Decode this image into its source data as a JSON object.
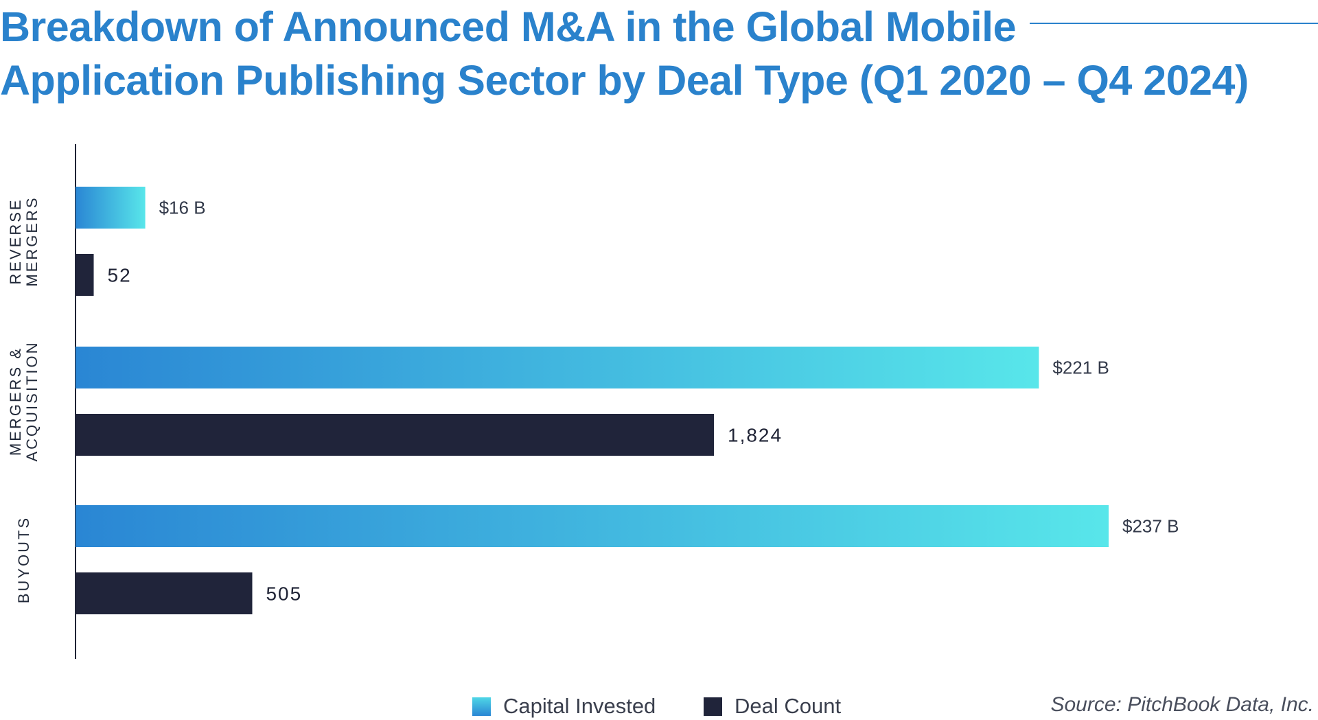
{
  "title": {
    "line1": "Breakdown of Announced M&A in the Global Mobile",
    "line2": "Application Publishing Sector by Deal Type (Q1 2020 – Q4 2024)"
  },
  "legend": {
    "capital": "Capital Invested",
    "count": "Deal Count"
  },
  "source": "Source: PitchBook Data, Inc.",
  "colors": {
    "title": "#2a82cc",
    "capital_start": "#2a86d4",
    "capital_end": "#58e6ea",
    "count": "#20243a"
  },
  "chart_data": {
    "type": "bar",
    "orientation": "horizontal",
    "categories": [
      {
        "lines": [
          "REVERSE",
          "MERGERS"
        ]
      },
      {
        "lines": [
          "MERGERS &",
          "ACQUISITION"
        ]
      },
      {
        "lines": [
          "BUYOUTS"
        ]
      }
    ],
    "series": [
      {
        "name": "Capital Invested",
        "values": [
          16,
          221,
          237
        ],
        "labels": [
          "$16 B",
          "$221 B",
          "$237 B"
        ],
        "unit": "$ B"
      },
      {
        "name": "Deal Count",
        "values": [
          52,
          1824,
          505
        ],
        "labels": [
          "52",
          "1,824",
          "505"
        ]
      }
    ],
    "grid": false,
    "legend_position": "bottom"
  }
}
